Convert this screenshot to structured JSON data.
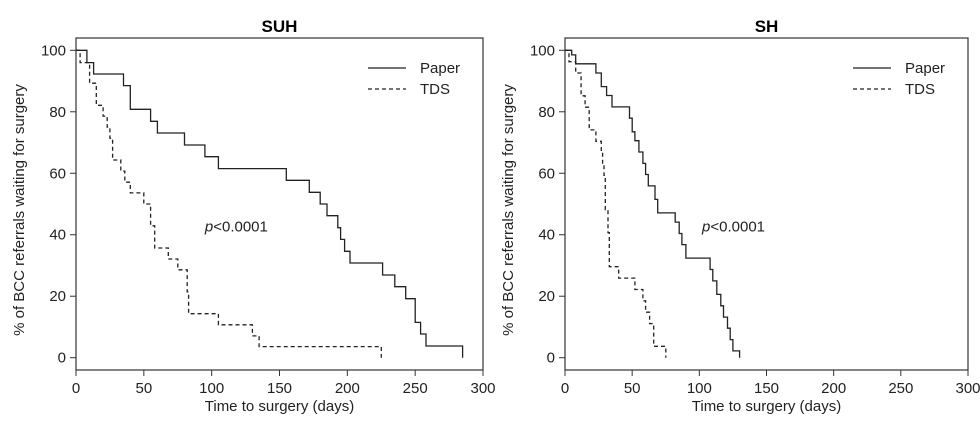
{
  "chart_data": [
    {
      "type": "line",
      "title": "SUH",
      "xlabel": "Time to surgery (days)",
      "ylabel": "% of BCC referrals waiting for surgery",
      "xlim": [
        0,
        300
      ],
      "ylim": [
        -4,
        104
      ],
      "xticks": [
        "0",
        "50",
        "100",
        "150",
        "200",
        "250",
        "300"
      ],
      "yticks": [
        "0",
        "20",
        "40",
        "60",
        "80",
        "100"
      ],
      "grid": false,
      "legend_position": "top-right",
      "annotation": {
        "p": "p",
        "rest": "<0.0001",
        "x": 95,
        "y": 41
      },
      "series": [
        {
          "name": "Paper",
          "style": "solid",
          "points": [
            [
              0,
              100
            ],
            [
              8,
              100
            ],
            [
              8,
              96
            ],
            [
              13,
              96
            ],
            [
              13,
              92.3
            ],
            [
              35,
              92.3
            ],
            [
              35,
              88.5
            ],
            [
              40,
              88.5
            ],
            [
              40,
              80.8
            ],
            [
              55,
              80.8
            ],
            [
              55,
              76.9
            ],
            [
              60,
              76.9
            ],
            [
              60,
              73.1
            ],
            [
              80,
              73.1
            ],
            [
              80,
              69.2
            ],
            [
              95,
              69.2
            ],
            [
              95,
              65.4
            ],
            [
              105,
              65.4
            ],
            [
              105,
              61.5
            ],
            [
              155,
              61.5
            ],
            [
              155,
              57.7
            ],
            [
              172,
              57.7
            ],
            [
              172,
              53.8
            ],
            [
              180,
              53.8
            ],
            [
              180,
              50
            ],
            [
              185,
              50
            ],
            [
              185,
              46.2
            ],
            [
              193,
              46.2
            ],
            [
              193,
              42.3
            ],
            [
              195,
              42.3
            ],
            [
              195,
              38.5
            ],
            [
              198,
              38.5
            ],
            [
              198,
              34.6
            ],
            [
              202,
              34.6
            ],
            [
              202,
              30.8
            ],
            [
              226,
              30.8
            ],
            [
              226,
              26.9
            ],
            [
              235,
              26.9
            ],
            [
              235,
              23.1
            ],
            [
              243,
              23.1
            ],
            [
              243,
              19.2
            ],
            [
              250,
              19.2
            ],
            [
              250,
              11.5
            ],
            [
              254,
              11.5
            ],
            [
              254,
              7.7
            ],
            [
              258,
              7.7
            ],
            [
              258,
              3.8
            ],
            [
              285,
              3.8
            ],
            [
              285,
              0
            ]
          ]
        },
        {
          "name": "TDS",
          "style": "dashed",
          "points": [
            [
              0,
              100
            ],
            [
              3,
              100
            ],
            [
              3,
              96
            ],
            [
              10,
              96
            ],
            [
              10,
              89.3
            ],
            [
              15,
              89.3
            ],
            [
              15,
              82.1
            ],
            [
              20,
              82.1
            ],
            [
              20,
              78.6
            ],
            [
              23,
              78.6
            ],
            [
              23,
              75
            ],
            [
              25,
              75
            ],
            [
              25,
              71.4
            ],
            [
              27,
              71.4
            ],
            [
              27,
              64.3
            ],
            [
              33,
              64.3
            ],
            [
              33,
              60.7
            ],
            [
              36,
              60.7
            ],
            [
              36,
              57.1
            ],
            [
              40,
              57.1
            ],
            [
              40,
              53.6
            ],
            [
              50,
              53.6
            ],
            [
              50,
              50
            ],
            [
              55,
              50
            ],
            [
              55,
              42.9
            ],
            [
              58,
              42.9
            ],
            [
              58,
              35.7
            ],
            [
              68,
              35.7
            ],
            [
              68,
              32.1
            ],
            [
              75,
              32.1
            ],
            [
              75,
              28.6
            ],
            [
              82,
              28.6
            ],
            [
              82,
              21.4
            ],
            [
              83,
              21.4
            ],
            [
              83,
              14.3
            ],
            [
              105,
              14.3
            ],
            [
              105,
              10.7
            ],
            [
              130,
              10.7
            ],
            [
              130,
              7.1
            ],
            [
              135,
              7.1
            ],
            [
              135,
              3.6
            ],
            [
              225,
              3.6
            ],
            [
              225,
              0
            ]
          ]
        }
      ]
    },
    {
      "type": "line",
      "title": "SH",
      "xlabel": "Time to surgery (days)",
      "ylabel": "% of BCC referrals waiting for surgery",
      "xlim": [
        0,
        300
      ],
      "ylim": [
        -4,
        104
      ],
      "xticks": [
        "0",
        "50",
        "100",
        "150",
        "200",
        "250",
        "300"
      ],
      "yticks": [
        "0",
        "20",
        "40",
        "60",
        "80",
        "100"
      ],
      "grid": false,
      "legend_position": "top-right",
      "annotation": {
        "p": "p",
        "rest": "<0.0001",
        "x": 102,
        "y": 41
      },
      "series": [
        {
          "name": "Paper",
          "style": "solid",
          "points": [
            [
              0,
              100
            ],
            [
              5,
              100
            ],
            [
              5,
              98.5
            ],
            [
              8,
              98.5
            ],
            [
              8,
              95.6
            ],
            [
              23,
              95.6
            ],
            [
              23,
              92.6
            ],
            [
              27,
              92.6
            ],
            [
              27,
              88.2
            ],
            [
              31,
              88.2
            ],
            [
              31,
              85.3
            ],
            [
              35,
              85.3
            ],
            [
              35,
              81.6
            ],
            [
              48,
              81.6
            ],
            [
              48,
              77.9
            ],
            [
              50,
              77.9
            ],
            [
              50,
              73.5
            ],
            [
              52,
              73.5
            ],
            [
              52,
              70.6
            ],
            [
              55,
              70.6
            ],
            [
              55,
              66.9
            ],
            [
              58,
              66.9
            ],
            [
              58,
              63.2
            ],
            [
              60,
              63.2
            ],
            [
              60,
              59.6
            ],
            [
              62,
              59.6
            ],
            [
              62,
              55.9
            ],
            [
              67,
              55.9
            ],
            [
              67,
              51.5
            ],
            [
              69,
              51.5
            ],
            [
              69,
              47.1
            ],
            [
              82,
              47.1
            ],
            [
              82,
              44.1
            ],
            [
              85,
              44.1
            ],
            [
              85,
              40.4
            ],
            [
              87,
              40.4
            ],
            [
              87,
              36.8
            ],
            [
              90,
              36.8
            ],
            [
              90,
              32.4
            ],
            [
              108,
              32.4
            ],
            [
              108,
              28.7
            ],
            [
              110,
              28.7
            ],
            [
              110,
              25
            ],
            [
              113,
              25
            ],
            [
              113,
              20.6
            ],
            [
              116,
              20.6
            ],
            [
              116,
              16.9
            ],
            [
              118,
              16.9
            ],
            [
              118,
              13.2
            ],
            [
              121,
              13.2
            ],
            [
              121,
              9.6
            ],
            [
              123,
              9.6
            ],
            [
              123,
              5.9
            ],
            [
              125,
              5.9
            ],
            [
              125,
              2.2
            ],
            [
              130,
              2.2
            ],
            [
              130,
              0
            ]
          ]
        },
        {
          "name": "TDS",
          "style": "dashed",
          "points": [
            [
              0,
              100
            ],
            [
              3,
              100
            ],
            [
              3,
              96.3
            ],
            [
              8,
              96.3
            ],
            [
              8,
              92.6
            ],
            [
              12,
              92.6
            ],
            [
              12,
              85.2
            ],
            [
              15,
              85.2
            ],
            [
              15,
              81.5
            ],
            [
              18,
              81.5
            ],
            [
              18,
              74.1
            ],
            [
              23,
              74.1
            ],
            [
              23,
              70.4
            ],
            [
              27,
              70.4
            ],
            [
              27,
              66.7
            ],
            [
              28,
              66.7
            ],
            [
              28,
              63
            ],
            [
              29,
              63
            ],
            [
              29,
              59.3
            ],
            [
              30,
              59.3
            ],
            [
              30,
              48.1
            ],
            [
              32,
              48.1
            ],
            [
              32,
              40.7
            ],
            [
              33,
              40.7
            ],
            [
              33,
              29.6
            ],
            [
              40,
              29.6
            ],
            [
              40,
              25.9
            ],
            [
              52,
              25.9
            ],
            [
              52,
              22.2
            ],
            [
              58,
              22.2
            ],
            [
              58,
              18.5
            ],
            [
              60,
              18.5
            ],
            [
              60,
              14.8
            ],
            [
              63,
              14.8
            ],
            [
              63,
              11.1
            ],
            [
              66,
              11.1
            ],
            [
              66,
              3.7
            ],
            [
              75,
              3.7
            ],
            [
              75,
              0
            ]
          ]
        }
      ]
    }
  ]
}
